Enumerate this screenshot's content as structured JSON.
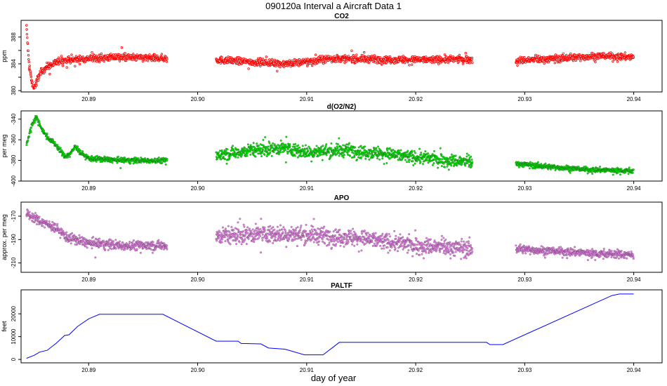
{
  "figure": {
    "title": "090120a   Interval a Aircraft Data 1",
    "xlabel": "day of year",
    "x_ticks": [
      20.89,
      20.9,
      20.91,
      20.92,
      20.93,
      20.94
    ],
    "x_tick_labels": [
      "20.89",
      "20.90",
      "20.91",
      "20.92",
      "20.93",
      "20.94"
    ],
    "xlim": [
      20.8838,
      20.9426
    ]
  },
  "chart_data": [
    {
      "type": "scatter",
      "title": "CO2",
      "ylabel": "ppm",
      "ylim": [
        379.8,
        390.5
      ],
      "y_ticks": [
        380,
        382,
        384,
        386,
        388
      ],
      "y_tick_labels": [
        "380",
        "",
        "384",
        "",
        "388"
      ],
      "x_ticks": [
        20.89,
        20.9,
        20.91,
        20.92,
        20.93,
        20.94
      ],
      "x_tick_labels": [
        "20.89",
        "20.90",
        "20.91",
        "20.92",
        "20.93",
        "20.94"
      ],
      "color": "#ff0000",
      "point_style": "open-circle",
      "segments": [
        {
          "x_start": 20.8843,
          "x_end": 20.8972,
          "knots": [
            [
              20.8843,
              389.5
            ],
            [
              20.8845,
              384.5
            ],
            [
              20.8848,
              381.0
            ],
            [
              20.885,
              380.3
            ],
            [
              20.8855,
              382.5
            ],
            [
              20.8862,
              383.6
            ],
            [
              20.8875,
              384.5
            ],
            [
              20.89,
              384.8
            ],
            [
              20.893,
              385.0
            ],
            [
              20.8972,
              384.8
            ]
          ],
          "noise": 0.5
        },
        {
          "x_start": 20.9017,
          "x_end": 20.9252,
          "knots": [
            [
              20.9017,
              384.6
            ],
            [
              20.908,
              384.0
            ],
            [
              20.91,
              384.3
            ],
            [
              20.912,
              384.8
            ],
            [
              20.92,
              384.6
            ],
            [
              20.9252,
              384.7
            ]
          ],
          "noise": 0.5
        },
        {
          "x_start": 20.9292,
          "x_end": 20.94,
          "knots": [
            [
              20.9292,
              384.5
            ],
            [
              20.933,
              384.8
            ],
            [
              20.937,
              385.2
            ],
            [
              20.94,
              385.0
            ]
          ],
          "noise": 0.5
        }
      ]
    },
    {
      "type": "scatter",
      "title": "d(O2/N2)",
      "ylabel": "per meg",
      "ylim": [
        -400,
        -332
      ],
      "y_ticks": [
        -400,
        -380,
        -360,
        -340
      ],
      "y_tick_labels": [
        "-400",
        "-380",
        "-360",
        "-340"
      ],
      "x_ticks": [
        20.89,
        20.9,
        20.91,
        20.92,
        20.93,
        20.94
      ],
      "x_tick_labels": [
        "20.89",
        "20.90",
        "20.91",
        "20.92",
        "20.93",
        "20.94"
      ],
      "color": "#00ee00",
      "point_style": "filled-circle",
      "segments": [
        {
          "x_start": 20.8843,
          "x_end": 20.8972,
          "knots": [
            [
              20.8843,
              -365
            ],
            [
              20.8848,
              -345
            ],
            [
              20.8852,
              -338
            ],
            [
              20.886,
              -355
            ],
            [
              20.887,
              -365
            ],
            [
              20.8878,
              -376
            ],
            [
              20.8883,
              -374
            ],
            [
              20.8888,
              -366
            ],
            [
              20.8892,
              -372
            ],
            [
              20.89,
              -378
            ],
            [
              20.893,
              -380
            ],
            [
              20.8972,
              -380
            ]
          ],
          "noise": 2.5
        },
        {
          "x_start": 20.9017,
          "x_end": 20.9252,
          "knots": [
            [
              20.9017,
              -375
            ],
            [
              20.905,
              -370
            ],
            [
              20.908,
              -368
            ],
            [
              20.91,
              -372
            ],
            [
              20.914,
              -370
            ],
            [
              20.92,
              -377
            ],
            [
              20.9252,
              -382
            ]
          ],
          "noise": 6
        },
        {
          "x_start": 20.9292,
          "x_end": 20.94,
          "knots": [
            [
              20.9292,
              -383
            ],
            [
              20.932,
              -386
            ],
            [
              20.936,
              -389
            ],
            [
              20.94,
              -390
            ]
          ],
          "noise": 2.5
        }
      ]
    },
    {
      "type": "scatter",
      "title": "APO",
      "ylabel": "approx. per meg",
      "ylim": [
        -218,
        -158
      ],
      "y_ticks": [
        -210,
        -190,
        -170
      ],
      "y_tick_labels": [
        "-210",
        "-190",
        "-170"
      ],
      "x_ticks": [
        20.89,
        20.9,
        20.91,
        20.92,
        20.93,
        20.94
      ],
      "x_tick_labels": [
        "20.89",
        "20.90",
        "20.91",
        "20.92",
        "20.93",
        "20.94"
      ],
      "color": "#ee82ee",
      "point_style": "filled-circle",
      "segments": [
        {
          "x_start": 20.8843,
          "x_end": 20.8972,
          "knots": [
            [
              20.8843,
              -168
            ],
            [
              20.8855,
              -174
            ],
            [
              20.887,
              -180
            ],
            [
              20.888,
              -188
            ],
            [
              20.89,
              -193
            ],
            [
              20.893,
              -195
            ],
            [
              20.8972,
              -195
            ]
          ],
          "noise": 4
        },
        {
          "x_start": 20.9017,
          "x_end": 20.9252,
          "knots": [
            [
              20.9017,
              -187
            ],
            [
              20.906,
              -185
            ],
            [
              20.91,
              -186
            ],
            [
              20.914,
              -188
            ],
            [
              20.92,
              -195
            ],
            [
              20.9252,
              -198
            ]
          ],
          "noise": 7
        },
        {
          "x_start": 20.9292,
          "x_end": 20.94,
          "knots": [
            [
              20.9292,
              -198
            ],
            [
              20.933,
              -200
            ],
            [
              20.937,
              -202
            ],
            [
              20.94,
              -203
            ]
          ],
          "noise": 3.5
        }
      ]
    },
    {
      "type": "line",
      "title": "PALTF",
      "ylabel": "feet",
      "xlabel": "day of year",
      "ylim": [
        -1500,
        30500
      ],
      "y_ticks": [
        0,
        10000,
        20000
      ],
      "y_tick_labels": [
        "0",
        "10000",
        "20000"
      ],
      "x_ticks": [
        20.89,
        20.9,
        20.91,
        20.92,
        20.93,
        20.94
      ],
      "x_tick_labels": [
        "20.89",
        "20.90",
        "20.91",
        "20.92",
        "20.93",
        "20.94"
      ],
      "color": "#0000ff",
      "points": [
        [
          20.8843,
          500
        ],
        [
          20.885,
          1800
        ],
        [
          20.8855,
          3200
        ],
        [
          20.8862,
          4000
        ],
        [
          20.887,
          7000
        ],
        [
          20.8878,
          10500
        ],
        [
          20.8882,
          10800
        ],
        [
          20.889,
          14500
        ],
        [
          20.89,
          17800
        ],
        [
          20.891,
          19800
        ],
        [
          20.8968,
          19800
        ],
        [
          20.9017,
          8000
        ],
        [
          20.9037,
          8000
        ],
        [
          20.904,
          7000
        ],
        [
          20.9058,
          6800
        ],
        [
          20.9065,
          5000
        ],
        [
          20.908,
          4500
        ],
        [
          20.9098,
          2000
        ],
        [
          20.9115,
          2000
        ],
        [
          20.913,
          7500
        ],
        [
          20.9265,
          7500
        ],
        [
          20.9268,
          6500
        ],
        [
          20.928,
          6500
        ],
        [
          20.938,
          28000
        ],
        [
          20.9387,
          28700
        ],
        [
          20.94,
          28700
        ]
      ]
    }
  ]
}
